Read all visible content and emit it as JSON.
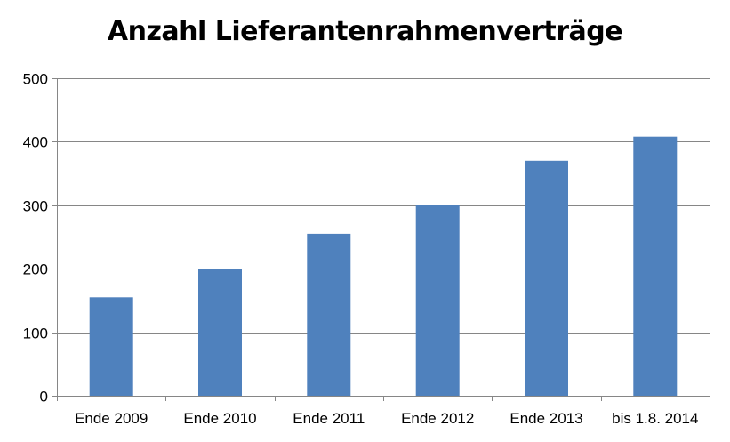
{
  "chart_data": {
    "type": "bar",
    "title": "Anzahl Lieferantenrahmenverträge",
    "xlabel": "",
    "ylabel": "",
    "categories": [
      "Ende 2009",
      "Ende 2010",
      "Ende 2011",
      "Ende 2012",
      "Ende 2013",
      "bis 1.8. 2014"
    ],
    "values": [
      155,
      200,
      255,
      300,
      370,
      408
    ],
    "ylim": [
      0,
      500
    ],
    "yticks": [
      0,
      100,
      200,
      300,
      400,
      500
    ],
    "grid": true,
    "legend": "none",
    "colors": {
      "bar": "#4F81BD",
      "grid": "#868686",
      "axis": "#868686"
    }
  }
}
